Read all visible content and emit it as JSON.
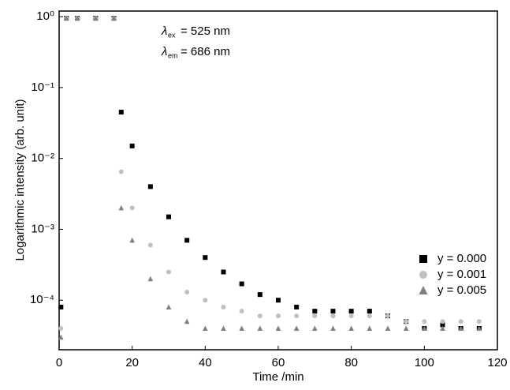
{
  "chart_data": {
    "type": "scatter",
    "x_label": "Time /min",
    "y_label": "Logarithmic intensity (arb. unit)",
    "annotations": [
      {
        "symbol": "λ",
        "sub": "ex",
        "text": "= 525 nm"
      },
      {
        "symbol": "λ",
        "sub": "em",
        "text": "= 686 nm"
      }
    ],
    "x": [
      0.5,
      2,
      5,
      10,
      15,
      17,
      20,
      25,
      30,
      35,
      40,
      45,
      50,
      55,
      60,
      65,
      70,
      75,
      80,
      85,
      90,
      95,
      100,
      105,
      110,
      115
    ],
    "series": [
      {
        "name": "y = 0.000",
        "color": "#000000",
        "marker": "square",
        "values": [
          8e-05,
          0.95,
          0.95,
          0.95,
          0.95,
          0.045,
          0.015,
          0.004,
          0.0015,
          0.0007,
          0.0004,
          0.00025,
          0.00017,
          0.00012,
          0.0001,
          8e-05,
          7e-05,
          7e-05,
          7e-05,
          7e-05,
          6e-05,
          5e-05,
          4e-05,
          4.5e-05,
          4e-05,
          4e-05
        ]
      },
      {
        "name": "y = 0.001",
        "color": "#c0c0c0",
        "marker": "circle",
        "values": [
          4e-05,
          0.95,
          0.95,
          0.95,
          0.95,
          0.0065,
          0.002,
          0.0006,
          0.00025,
          0.00013,
          0.0001,
          8e-05,
          7e-05,
          6e-05,
          6e-05,
          6e-05,
          6e-05,
          6e-05,
          6e-05,
          6e-05,
          6e-05,
          5e-05,
          5e-05,
          5e-05,
          5e-05,
          5e-05
        ]
      },
      {
        "name": "y = 0.005",
        "color": "#808080",
        "marker": "triangle",
        "values": [
          3e-05,
          0.95,
          0.95,
          0.95,
          0.95,
          0.002,
          0.0007,
          0.0002,
          8e-05,
          5e-05,
          4e-05,
          4e-05,
          4e-05,
          4e-05,
          4e-05,
          4e-05,
          4e-05,
          4e-05,
          4e-05,
          4e-05,
          4e-05,
          4e-05,
          4e-05,
          4e-05,
          4e-05,
          4e-05
        ]
      }
    ],
    "xlim": [
      0,
      120
    ],
    "xticks": [
      0,
      20,
      40,
      60,
      80,
      100,
      120
    ],
    "ylim": [
      2e-05,
      1.2
    ],
    "log_y": true,
    "yticks": [
      {
        "value": 0.0001,
        "label": "10⁻⁴"
      },
      {
        "value": 0.001,
        "label": "10⁻³"
      },
      {
        "value": 0.01,
        "label": "10⁻²"
      },
      {
        "value": 0.1,
        "label": "10⁻¹"
      },
      {
        "value": 1,
        "label": "10⁰"
      }
    ],
    "legend": "lower right"
  }
}
